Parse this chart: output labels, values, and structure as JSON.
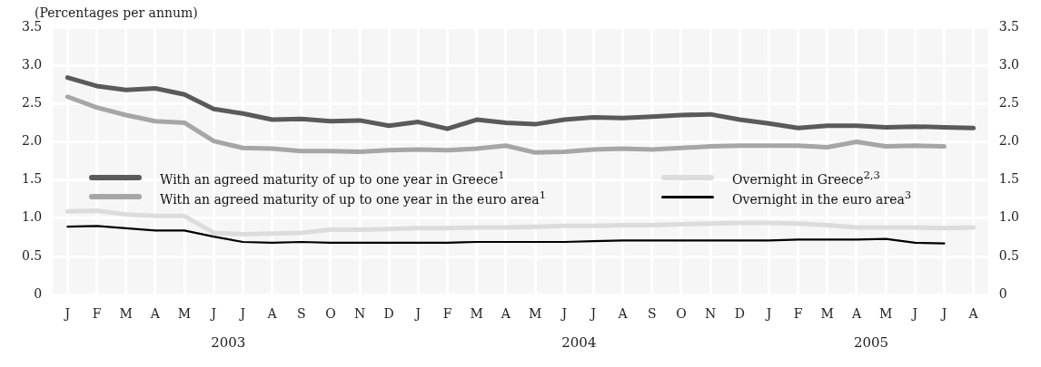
{
  "chart_data": {
    "type": "line",
    "subtitle": "(Percentages per annum)",
    "categories": [
      "J",
      "F",
      "M",
      "A",
      "M",
      "J",
      "J",
      "A",
      "S",
      "O",
      "N",
      "D",
      "J",
      "F",
      "M",
      "A",
      "M",
      "J",
      "J",
      "A",
      "S",
      "O",
      "N",
      "D",
      "J",
      "F",
      "M",
      "A",
      "M",
      "J",
      "J",
      "A"
    ],
    "annotations": [
      "2003",
      "2004",
      "2005"
    ],
    "series": [
      {
        "name": "With an agreed maturity of up to one year in Greece$^{1}$",
        "color": "#5a5a5a",
        "values": [
          2.84,
          2.73,
          2.68,
          2.7,
          2.62,
          2.43,
          2.37,
          2.29,
          2.3,
          2.27,
          2.28,
          2.21,
          2.26,
          2.17,
          2.29,
          2.25,
          2.23,
          2.29,
          2.32,
          2.31,
          2.33,
          2.35,
          2.36,
          2.29,
          2.24,
          2.18,
          2.21,
          2.21,
          2.19,
          2.2,
          2.19,
          2.18
        ]
      },
      {
        "name": "With an agreed maturity of up to one year in the euro area$^{1}$",
        "color": "#a6a6a6",
        "values": [
          2.59,
          2.45,
          2.35,
          2.27,
          2.25,
          2.01,
          1.92,
          1.91,
          1.88,
          1.88,
          1.87,
          1.89,
          1.9,
          1.89,
          1.91,
          1.95,
          1.86,
          1.87,
          1.9,
          1.91,
          1.9,
          1.92,
          1.94,
          1.95,
          1.95,
          1.95,
          1.93,
          2.0,
          1.94,
          1.95,
          1.94,
          null
        ]
      },
      {
        "name": "Overnight in Greece$^{2,3}$",
        "color": "#dcdcdc",
        "values": [
          1.09,
          1.1,
          1.05,
          1.03,
          1.03,
          0.81,
          0.79,
          0.8,
          0.81,
          0.85,
          0.85,
          0.86,
          0.87,
          0.87,
          0.88,
          0.88,
          0.89,
          0.9,
          0.9,
          0.91,
          0.91,
          0.92,
          0.93,
          0.94,
          0.94,
          0.93,
          0.91,
          0.88,
          0.88,
          0.88,
          0.87,
          0.88
        ]
      },
      {
        "name": "Overnight in the euro area$^{3}$",
        "color": "#000000",
        "values": [
          0.89,
          0.9,
          0.87,
          0.84,
          0.84,
          0.76,
          0.69,
          0.68,
          0.69,
          0.68,
          0.68,
          0.68,
          0.68,
          0.68,
          0.69,
          0.69,
          0.69,
          0.69,
          0.7,
          0.71,
          0.71,
          0.71,
          0.71,
          0.71,
          0.71,
          0.72,
          0.72,
          0.72,
          0.73,
          0.68,
          0.67,
          null
        ]
      }
    ],
    "ylim": [
      0,
      3.5
    ],
    "yticks": [
      {
        "value": 0,
        "label": "0"
      },
      0.5,
      {
        "value": 1,
        "label": "1.0"
      },
      1.5,
      {
        "value": 2,
        "label": "2.0"
      },
      2.5,
      {
        "value": 3,
        "label": "3.0"
      },
      3.5
    ],
    "y2lim": [
      0,
      3.5
    ],
    "y2ticks": [
      {
        "value": 0,
        "label": "0"
      },
      0.5,
      {
        "value": 1,
        "label": "1.0"
      },
      1.5,
      {
        "value": 2,
        "label": "2.0"
      },
      2.5,
      {
        "value": 3,
        "label": "3.0"
      },
      3.5
    ],
    "grid": true,
    "legend": "bottom left",
    "marker": "none",
    "line_style": "solid"
  }
}
